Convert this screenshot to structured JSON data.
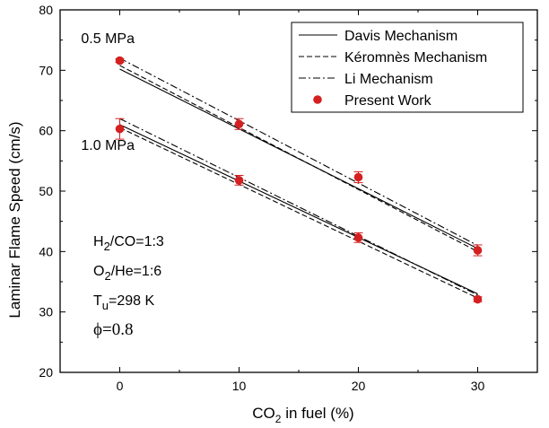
{
  "chart_data": {
    "type": "line",
    "title": "",
    "xlabel": {
      "main": "CO",
      "sub": "2",
      "rest": " in fuel (%)"
    },
    "ylabel": "Laminar Flame Speed (cm/s)",
    "xlim": [
      -5,
      35
    ],
    "ylim": [
      20,
      80
    ],
    "xticks": [
      "0",
      "10",
      "20",
      "30"
    ],
    "xtick_values": [
      0,
      10,
      20,
      30
    ],
    "yticks": [
      "20",
      "30",
      "40",
      "50",
      "60",
      "70",
      "80"
    ],
    "ytick_values": [
      20,
      30,
      40,
      50,
      60,
      70,
      80
    ],
    "grid": false,
    "legend_position": "top-right",
    "legend": [
      {
        "name": "Davis Mechanism",
        "style": "solid"
      },
      {
        "name": "Kéromnès Mechanism",
        "style": "dashed"
      },
      {
        "name": "Li Mechanism",
        "style": "dashdot"
      },
      {
        "name": "Present Work",
        "style": "marker"
      }
    ],
    "marker_color": "#d42020",
    "line_color": "#000000",
    "pressure_labels": [
      {
        "text": "0.5 MPa",
        "x": -1,
        "y": 74.5
      },
      {
        "text": "1.0 MPa",
        "x": -1,
        "y": 56.8
      }
    ],
    "conditions": [
      {
        "main": "H",
        "sub": "2",
        "rest": "/CO=1:3"
      },
      {
        "main": "O",
        "sub": "2",
        "rest": "/He=1:6"
      },
      {
        "main": "T",
        "sub": "u",
        "rest": "=298 K"
      },
      {
        "main": "ϕ=0.8",
        "sub": "",
        "rest": ""
      }
    ],
    "series": [
      {
        "group": "0.5 MPa",
        "mechanism": "Davis Mechanism",
        "style": "solid",
        "x": [
          0,
          30
        ],
        "y": [
          70.2,
          40.5
        ]
      },
      {
        "group": "0.5 MPa",
        "mechanism": "Kéromnès Mechanism",
        "style": "dashed",
        "x": [
          0,
          30
        ],
        "y": [
          70.8,
          40.0
        ]
      },
      {
        "group": "0.5 MPa",
        "mechanism": "Li Mechanism",
        "style": "dashdot",
        "x": [
          0,
          30
        ],
        "y": [
          72.0,
          41.0
        ]
      },
      {
        "group": "1.0 MPa",
        "mechanism": "Davis Mechanism",
        "style": "solid",
        "x": [
          0,
          30
        ],
        "y": [
          61.0,
          33.0
        ]
      },
      {
        "group": "1.0 MPa",
        "mechanism": "Kéromnès Mechanism",
        "style": "dashed",
        "x": [
          0,
          30
        ],
        "y": [
          60.5,
          32.3
        ]
      },
      {
        "group": "1.0 MPa",
        "mechanism": "Li Mechanism",
        "style": "dashdot",
        "x": [
          0,
          30
        ],
        "y": [
          62.0,
          32.8
        ]
      }
    ],
    "points": [
      {
        "group": "0.5 MPa",
        "x": 0,
        "y": 71.6,
        "err": 0.3
      },
      {
        "group": "0.5 MPa",
        "x": 10,
        "y": 61.1,
        "err": 0.9
      },
      {
        "group": "0.5 MPa",
        "x": 20,
        "y": 52.3,
        "err": 0.9
      },
      {
        "group": "0.5 MPa",
        "x": 30,
        "y": 40.2,
        "err": 0.9
      },
      {
        "group": "1.0 MPa",
        "x": 0,
        "y": 60.3,
        "err": 1.7
      },
      {
        "group": "1.0 MPa",
        "x": 10,
        "y": 51.8,
        "err": 0.8
      },
      {
        "group": "1.0 MPa",
        "x": 20,
        "y": 42.3,
        "err": 0.8
      },
      {
        "group": "1.0 MPa",
        "x": 30,
        "y": 32.1,
        "err": 0.4
      }
    ]
  }
}
